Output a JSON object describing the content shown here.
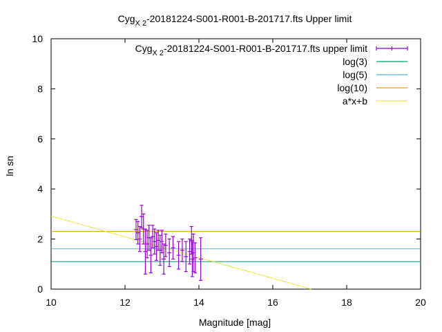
{
  "chart_data": {
    "type": "scatter",
    "title": {
      "prefix": "Cyg",
      "subscript": "X 2",
      "suffix": "-20181224-S001-R001-B-201717.fts Upper limit"
    },
    "xlabel": "Magnitude [mag]",
    "ylabel": "ln sn",
    "xlim": [
      10,
      20
    ],
    "ylim": [
      0,
      10
    ],
    "xticks": [
      10,
      12,
      14,
      16,
      18,
      20
    ],
    "yticks": [
      0,
      2,
      4,
      6,
      8,
      10
    ],
    "grid": false,
    "legend_position": "top-right",
    "series": [
      {
        "kind": "errorbars",
        "name": {
          "prefix": "Cyg",
          "subscript": "X 2",
          "suffix": "-20181224-S001-R001-B-201717.fts upper limit"
        },
        "color": "#9400d3",
        "points": [
          {
            "x": 12.3,
            "y": 2.38,
            "err": 0.4
          },
          {
            "x": 12.35,
            "y": 2.25,
            "err": 0.45
          },
          {
            "x": 12.4,
            "y": 2.0,
            "err": 0.5
          },
          {
            "x": 12.45,
            "y": 2.9,
            "err": 0.45
          },
          {
            "x": 12.5,
            "y": 2.4,
            "err": 0.6
          },
          {
            "x": 12.55,
            "y": 1.5,
            "err": 0.9
          },
          {
            "x": 12.6,
            "y": 1.8,
            "err": 0.55
          },
          {
            "x": 12.65,
            "y": 2.05,
            "err": 0.5
          },
          {
            "x": 12.7,
            "y": 1.35,
            "err": 0.7
          },
          {
            "x": 12.75,
            "y": 2.1,
            "err": 0.45
          },
          {
            "x": 12.8,
            "y": 1.9,
            "err": 0.5
          },
          {
            "x": 12.85,
            "y": 1.7,
            "err": 0.55
          },
          {
            "x": 12.9,
            "y": 1.95,
            "err": 0.4
          },
          {
            "x": 12.95,
            "y": 1.55,
            "err": 0.6
          },
          {
            "x": 13.0,
            "y": 1.9,
            "err": 0.45
          },
          {
            "x": 13.05,
            "y": 1.2,
            "err": 0.6
          },
          {
            "x": 13.1,
            "y": 1.75,
            "err": 0.45
          },
          {
            "x": 13.2,
            "y": 1.45,
            "err": 0.55
          },
          {
            "x": 13.3,
            "y": 1.65,
            "err": 0.45
          },
          {
            "x": 13.45,
            "y": 1.35,
            "err": 0.55
          },
          {
            "x": 13.55,
            "y": 1.55,
            "err": 0.45
          },
          {
            "x": 13.65,
            "y": 1.3,
            "err": 0.6
          },
          {
            "x": 13.75,
            "y": 1.5,
            "err": 0.5
          },
          {
            "x": 13.8,
            "y": 1.95,
            "err": 0.55
          },
          {
            "x": 13.82,
            "y": 1.2,
            "err": 0.7
          },
          {
            "x": 13.85,
            "y": 1.45,
            "err": 0.75
          },
          {
            "x": 13.9,
            "y": 1.25,
            "err": 0.6
          },
          {
            "x": 14.05,
            "y": 1.2,
            "err": 0.85
          }
        ]
      },
      {
        "kind": "hline",
        "name": "log(3)",
        "y": 1.0986,
        "color": "#009e73"
      },
      {
        "kind": "hline",
        "name": "log(5)",
        "y": 1.6094,
        "color": "#56b4e9"
      },
      {
        "kind": "hline",
        "name": "log(10)",
        "y": 2.3026,
        "color": "#e69f00"
      },
      {
        "kind": "line",
        "name": "a*x+b",
        "slope": -0.415,
        "intercept": 7.07,
        "color": "#f0e442"
      }
    ]
  }
}
